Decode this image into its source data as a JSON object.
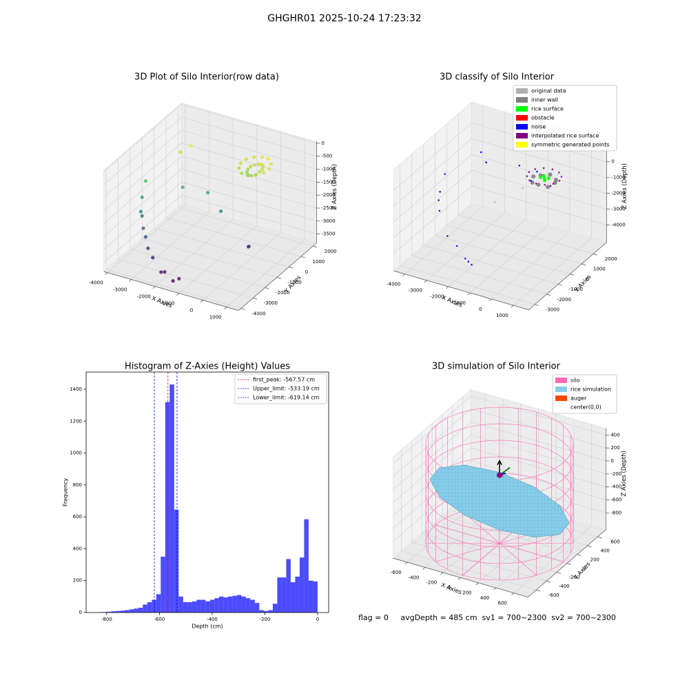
{
  "title": "GHGHR01 2025-10-24 17:23:32",
  "chart_data": [
    {
      "type": "scatter3d",
      "title": "3D Plot of Silo Interior(row data)",
      "xlabel": "X Axies",
      "ylabel": "Y Axies",
      "zlabel": "Z Axies (Depth)",
      "xlim": [
        -4150,
        1500
      ],
      "ylim": [
        -4200,
        2300
      ],
      "zlim": [
        -3850,
        50
      ],
      "xticks": [
        -4000,
        -3000,
        -2000,
        -1000,
        0,
        1000
      ],
      "yticks": [
        -4000,
        -3000,
        -2000,
        -1000,
        0,
        1000,
        2000
      ],
      "zticks": [
        0,
        -500,
        -1000,
        -1500,
        -2000,
        -2500,
        -3000,
        -3500
      ],
      "colormap": "viridis",
      "x": [
        150,
        70,
        -150,
        -450,
        -750,
        -970,
        -1050,
        -970,
        -750,
        -450,
        -150,
        70,
        -150,
        -190,
        -300,
        -450,
        -600,
        -710,
        -750,
        -710,
        -600,
        -450,
        -300,
        -190,
        -4000,
        -3900,
        -3700,
        -3600,
        -3400,
        -3200,
        -2900,
        -2600,
        -2000,
        -1800,
        -1400,
        -1200,
        -3300,
        -3000,
        -2800,
        -2000,
        -1200,
        200,
        250
      ],
      "y": [
        1050,
        1350,
        1570,
        1650,
        1570,
        1350,
        1050,
        750,
        530,
        450,
        530,
        750,
        1050,
        1200,
        1310,
        1350,
        1310,
        1200,
        1050,
        900,
        790,
        750,
        790,
        900,
        -1000,
        -1500,
        -2000,
        -2100,
        -2400,
        -2600,
        -3000,
        -3200,
        -3700,
        -3800,
        -3900,
        -3800,
        500,
        800,
        -300,
        200,
        -300,
        -800,
        -850
      ],
      "z": [
        -850,
        -800,
        -750,
        -800,
        -850,
        -900,
        -950,
        -1000,
        -1050,
        -1000,
        -950,
        -900,
        -950,
        -900,
        -900,
        -950,
        -1000,
        -1050,
        -1100,
        -1150,
        -1200,
        -1150,
        -1100,
        -1000,
        -1600,
        -2000,
        -2300,
        -2400,
        -2700,
        -2900,
        -3100,
        -3300,
        -3500,
        -3400,
        -3600,
        -3500,
        -900,
        -700,
        -1800,
        -2000,
        -2300,
        -3100,
        -3050
      ]
    },
    {
      "type": "scatter3d",
      "title": "3D classify of Silo Interior",
      "xlabel": "X Axies",
      "ylabel": "Y Axies",
      "zlabel": "Z Axies (Depth)",
      "xlim": [
        -4510,
        1700
      ],
      "ylim": [
        -3530,
        3130
      ],
      "zlim": [
        -5100,
        1300
      ],
      "xticks": [
        -4000,
        -3000,
        -2000,
        -1000,
        0,
        1000
      ],
      "yticks": [
        -3000,
        -2000,
        -1000,
        0,
        1000,
        2000
      ],
      "zticks": [
        0,
        -1000,
        -2000,
        -3000,
        -4000
      ],
      "legend": "upper right",
      "series": [
        {
          "name": "original data",
          "color": "#b0b0b0",
          "x": [
            -3000,
            -1500,
            -900
          ],
          "y": [
            1500,
            -500,
            800
          ],
          "z": [
            -800,
            -1500,
            -1200
          ]
        },
        {
          "name": "inner wall",
          "color": "#808080",
          "x": [
            100,
            -46,
            -400,
            -754,
            -900,
            -754,
            -400,
            -46
          ],
          "y": [
            1700,
            2054,
            2200,
            2054,
            1700,
            1346,
            1200,
            1346
          ],
          "z": [
            -1050,
            -1150,
            -1050,
            -1150,
            -1050,
            -1150,
            -1050,
            -1150
          ]
        },
        {
          "name": "rice surface",
          "color": "#00ff00",
          "x": [
            -400,
            -250,
            -550,
            -300,
            -500
          ],
          "y": [
            1700,
            1800,
            1650,
            1550,
            1850
          ],
          "z": [
            -950,
            -970,
            -940,
            -960,
            -930
          ]
        },
        {
          "name": "obstacle",
          "color": "#ff0000",
          "x": [],
          "y": [],
          "z": []
        },
        {
          "name": "noise",
          "color": "#0000ff",
          "x": [
            -3900,
            -3800,
            -3700,
            -3500,
            -2600,
            -2000,
            -1400,
            -1200,
            -1000,
            -3200,
            -2800,
            -1600,
            -900,
            100,
            -1000
          ],
          "y": [
            -300,
            -900,
            -1200,
            -1500,
            -2500,
            -2800,
            -3200,
            -3300,
            -3400,
            1500,
            1200,
            1800,
            1500,
            1300,
            2200
          ],
          "z": [
            -800,
            -1500,
            -1800,
            -2200,
            -2800,
            -3000,
            -3300,
            -3350,
            -3400,
            -300,
            -600,
            -700,
            -1200,
            -1000,
            -1100
          ]
        },
        {
          "name": "interpolated rice surface",
          "color": "#800080",
          "x": [
            300,
            206,
            -50,
            -400,
            -750,
            -1006,
            -1100,
            -1006,
            -750,
            -400,
            -50,
            206
          ],
          "y": [
            1700,
            2050,
            2306,
            2400,
            2306,
            2050,
            1700,
            1350,
            1094,
            1000,
            1094,
            1350
          ],
          "z": [
            -850,
            -850,
            -850,
            -850,
            -850,
            -850,
            -850,
            -850,
            -850,
            -850,
            -850,
            -850
          ]
        },
        {
          "name": "symmetric generated points",
          "color": "#ffff00",
          "x": [],
          "y": [],
          "z": []
        }
      ]
    },
    {
      "type": "histogram",
      "title": "Histogram of Z-Axies (Height) Values",
      "xlabel": "Depth (cm)",
      "ylabel": "Frequency",
      "color": "#0000ff",
      "bins": [
        -833,
        -816,
        -799,
        -782,
        -765,
        -748,
        -731,
        -714,
        -697,
        -680,
        -663,
        -646,
        -629,
        -612,
        -595,
        -578,
        -561,
        -544,
        -527,
        -510,
        -493,
        -476,
        -459,
        -442,
        -425,
        -408,
        -391,
        -374,
        -357,
        -340,
        -323,
        -306,
        -289,
        -272,
        -255,
        -238,
        -221,
        -204,
        -187,
        -170,
        -153,
        -136,
        -119,
        -102,
        -85,
        -68,
        -51,
        -34,
        -17,
        0
      ],
      "values": [
        2,
        3,
        5,
        8,
        10,
        12,
        15,
        20,
        25,
        30,
        50,
        65,
        80,
        115,
        350,
        1320,
        1430,
        645,
        100,
        65,
        65,
        70,
        80,
        80,
        70,
        80,
        90,
        100,
        95,
        100,
        105,
        110,
        100,
        90,
        80,
        60,
        15,
        10,
        15,
        55,
        220,
        220,
        335,
        190,
        225,
        345,
        585,
        200,
        195
      ],
      "xlim": [
        -878,
        42
      ],
      "ylim": [
        0,
        1508
      ],
      "xticks": [
        -800,
        -600,
        -400,
        -200,
        0
      ],
      "yticks": [
        0,
        200,
        400,
        600,
        800,
        1000,
        1200,
        1400
      ],
      "legend": "upper right",
      "vlines": [
        {
          "name": "first_peak: -567.57 cm",
          "value": -567.57,
          "color": "#ff0000"
        },
        {
          "name": "Upper_limit: -533.19 cm",
          "value": -533.19,
          "color": "#0000ff"
        },
        {
          "name": "Lower_limit: -619.14 cm",
          "value": -619.14,
          "color": "#0000ff"
        }
      ]
    },
    {
      "type": "surface3d",
      "title": "3D simulation of Silo Interior",
      "xlabel": "X Axies",
      "ylabel": "Y Axies",
      "zlabel": "Z Axies (Depth)",
      "xlim": [
        -760,
        760
      ],
      "ylim": [
        -760,
        760
      ],
      "zlim": [
        -1060,
        500
      ],
      "xticks": [
        -600,
        -400,
        -200,
        0,
        200,
        400,
        600
      ],
      "yticks": [
        -600,
        -400,
        -200,
        0,
        200,
        400,
        600
      ],
      "zticks": [
        400,
        200,
        0,
        -200,
        -400,
        -600,
        -800
      ],
      "legend": "upper right",
      "series": [
        {
          "name": "silo",
          "color": "#ff69b4",
          "radius": 720,
          "z": [
            480,
            -1050
          ]
        },
        {
          "name": "rice simulation",
          "color": "#87ceeb",
          "x": [
            680,
            589,
            340,
            0,
            -340,
            -589,
            -680,
            -589,
            -340,
            0,
            340,
            589
          ],
          "y": [
            0,
            340,
            589,
            680,
            589,
            340,
            0,
            -340,
            -589,
            -680,
            -589,
            -340
          ],
          "z": [
            -647,
            -738,
            -738,
            -647,
            -491,
            -309,
            -153,
            -62,
            -62,
            -153,
            -309,
            -491
          ]
        },
        {
          "name": "auger",
          "color": "#ff4500"
        },
        {
          "name": "center(0,0)",
          "color": "#ffffff",
          "x": 0,
          "y": 0,
          "z": 0
        }
      ],
      "note": "flag = 0     avgDepth = 485 cm  sv1 = 700~2300  sv2 = 700~2300"
    }
  ]
}
